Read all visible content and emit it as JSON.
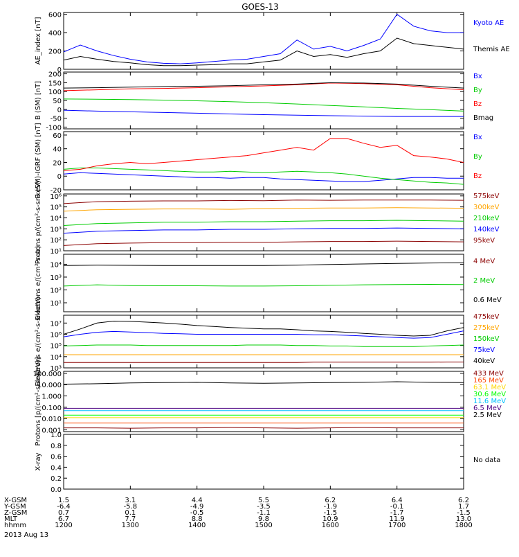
{
  "title": "GOES-13",
  "date": "2013 Aug 13",
  "x_axis": {
    "row_labels": [
      "X-GSM",
      "Y-GSM",
      "Z-GSM",
      "MLT",
      "hhmm"
    ],
    "columns": [
      [
        "1.5",
        "-6.4",
        "0.7",
        "6.7",
        "1200"
      ],
      [
        "3.1",
        "-5.8",
        "0.1",
        "7.7",
        "1300"
      ],
      [
        "4.4",
        "-4.9",
        "-0.5",
        "8.8",
        "1400"
      ],
      [
        "5.5",
        "-3.5",
        "-1.1",
        "9.8",
        "1500"
      ],
      [
        "6.2",
        "-1.9",
        "-1.5",
        "10.9",
        "1600"
      ],
      [
        "6.4",
        "-0.1",
        "-1.7",
        "11.9",
        "1700"
      ],
      [
        "6.2",
        "1.7",
        "-1.5",
        "13.0",
        "1800"
      ]
    ]
  },
  "chart_data": [
    {
      "type": "line",
      "ylabel": "AE_index [nT]",
      "yscale": "linear",
      "ylim": [
        0,
        620
      ],
      "ticks": [
        "0",
        "200",
        "400",
        "600"
      ],
      "x": [
        1200,
        1215,
        1230,
        1245,
        1300,
        1315,
        1330,
        1345,
        1400,
        1415,
        1430,
        1445,
        1500,
        1515,
        1530,
        1545,
        1600,
        1615,
        1630,
        1645,
        1700,
        1715,
        1730,
        1745,
        1800
      ],
      "series": [
        {
          "name": "Kyoto AE",
          "color": "#0000ff",
          "values": [
            190,
            265,
            200,
            150,
            110,
            80,
            65,
            60,
            70,
            85,
            100,
            110,
            140,
            170,
            320,
            220,
            250,
            200,
            260,
            330,
            600,
            470,
            420,
            400,
            400
          ]
        },
        {
          "name": "Themis AE",
          "color": "#000000",
          "values": [
            100,
            140,
            110,
            85,
            70,
            50,
            40,
            40,
            45,
            50,
            60,
            60,
            80,
            100,
            200,
            140,
            160,
            130,
            170,
            200,
            340,
            280,
            260,
            240,
            220
          ]
        }
      ]
    },
    {
      "type": "line",
      "ylabel": "B (SM) [nT]",
      "yscale": "linear",
      "ylim": [
        -110,
        210
      ],
      "ticks": [
        "200",
        "150",
        "100",
        "50",
        "0",
        "-50",
        "-100"
      ],
      "x": [
        1200,
        1230,
        1300,
        1330,
        1400,
        1430,
        1500,
        1530,
        1600,
        1630,
        1700,
        1730,
        1800
      ],
      "series": [
        {
          "name": "Bx",
          "color": "#0000ff",
          "values": [
            -5,
            -10,
            -14,
            -18,
            -22,
            -26,
            -30,
            -33,
            -36,
            -38,
            -40,
            -40,
            -40
          ]
        },
        {
          "name": "By",
          "color": "#00cc00",
          "values": [
            58,
            57,
            55,
            52,
            48,
            43,
            37,
            30,
            22,
            14,
            5,
            -2,
            -10
          ]
        },
        {
          "name": "Bz",
          "color": "#ff0000",
          "values": [
            105,
            110,
            115,
            118,
            122,
            127,
            132,
            138,
            148,
            145,
            138,
            122,
            110
          ]
        },
        {
          "name": "Bmag",
          "color": "#000000",
          "values": [
            120,
            122,
            125,
            128,
            130,
            133,
            138,
            142,
            150,
            148,
            142,
            130,
            120
          ]
        }
      ]
    },
    {
      "type": "line",
      "ylabel": "B (SM)-IGRF (SM) [nT]",
      "yscale": "linear",
      "ylim": [
        -20,
        65
      ],
      "ticks": [
        "60",
        "40",
        "20",
        "0",
        "-20"
      ],
      "x": [
        1200,
        1215,
        1230,
        1245,
        1300,
        1315,
        1330,
        1345,
        1400,
        1415,
        1430,
        1445,
        1500,
        1515,
        1530,
        1545,
        1600,
        1615,
        1630,
        1645,
        1700,
        1715,
        1730,
        1745,
        1800
      ],
      "series": [
        {
          "name": "Bx",
          "color": "#0000ff",
          "values": [
            3,
            5,
            4,
            3,
            2,
            1,
            0,
            -1,
            -2,
            -2,
            -3,
            -2,
            -2,
            -4,
            -5,
            -6,
            -7,
            -8,
            -8,
            -6,
            -4,
            -2,
            -2,
            -3,
            -3
          ]
        },
        {
          "name": "By",
          "color": "#00cc00",
          "values": [
            10,
            12,
            12,
            11,
            10,
            9,
            8,
            7,
            6,
            6,
            7,
            6,
            5,
            6,
            7,
            6,
            5,
            3,
            0,
            -3,
            -5,
            -7,
            -9,
            -10,
            -12
          ]
        },
        {
          "name": "Bz",
          "color": "#ff0000",
          "values": [
            8,
            10,
            15,
            18,
            20,
            18,
            20,
            22,
            24,
            26,
            28,
            30,
            34,
            38,
            42,
            38,
            55,
            55,
            48,
            42,
            45,
            30,
            28,
            25,
            20
          ]
        }
      ]
    },
    {
      "type": "line",
      "ylabel": "Protons p/(cm²-s-sr-keV)",
      "yscale": "log",
      "ylim": [
        10,
        1500000
      ],
      "ticks": [
        "10¹",
        "10²",
        "10³",
        "10⁴",
        "10⁵",
        "10⁶"
      ],
      "tick_values": [
        10,
        100,
        1000,
        10000,
        100000,
        1000000
      ],
      "x": [
        1200,
        1230,
        1300,
        1330,
        1400,
        1430,
        1500,
        1530,
        1600,
        1630,
        1700,
        1730,
        1800
      ],
      "series": [
        {
          "name": "575keV",
          "color": "#8b0000",
          "values": [
            200000,
            300000,
            330000,
            350000,
            350000,
            380000,
            360000,
            420000,
            400000,
            420000,
            420000,
            420000,
            400000
          ]
        },
        {
          "name": "300keV",
          "color": "#ffa500",
          "values": [
            40000,
            55000,
            60000,
            65000,
            65000,
            60000,
            70000,
            75000,
            80000,
            80000,
            85000,
            80000,
            75000
          ]
        },
        {
          "name": "210keV",
          "color": "#00cc00",
          "values": [
            2000,
            3000,
            3500,
            4000,
            4000,
            4500,
            4500,
            5000,
            5500,
            5500,
            6000,
            5500,
            5000
          ]
        },
        {
          "name": "140keV",
          "color": "#0000ff",
          "values": [
            400,
            600,
            700,
            800,
            800,
            900,
            900,
            1000,
            1100,
            1100,
            1200,
            1100,
            1000
          ]
        },
        {
          "name": "95keV",
          "color": "#8b0000",
          "values": [
            30,
            45,
            50,
            55,
            55,
            60,
            60,
            65,
            70,
            70,
            75,
            70,
            65
          ]
        }
      ]
    },
    {
      "type": "line",
      "ylabel": "Electrons e/(cm²-s-sr)",
      "yscale": "log",
      "ylim": [
        2,
        60000
      ],
      "ticks": [
        "10¹",
        "10²",
        "10³",
        "10⁴"
      ],
      "tick_values": [
        10,
        100,
        1000,
        10000
      ],
      "x": [
        1200,
        1230,
        1300,
        1330,
        1400,
        1430,
        1500,
        1530,
        1600,
        1630,
        1700,
        1730,
        1800
      ],
      "series": [
        {
          "name": "4 MeV",
          "color": "#8b0000",
          "values": [
            null,
            null,
            null,
            null,
            null,
            null,
            null,
            null,
            null,
            null,
            null,
            null,
            null
          ]
        },
        {
          "name": "2 MeV",
          "color": "#00cc00",
          "values": [
            200,
            250,
            220,
            210,
            210,
            200,
            200,
            210,
            230,
            250,
            260,
            270,
            260
          ]
        },
        {
          "name": "0.6 MeV",
          "color": "#000000",
          "values": [
            8000,
            8500,
            8200,
            8000,
            8000,
            8000,
            8000,
            8500,
            9500,
            10500,
            11500,
            12500,
            13000
          ]
        }
      ]
    },
    {
      "type": "line",
      "ylabel": "Electrons e/(cm²-s-sr-keV)",
      "yscale": "log",
      "ylim": [
        1000,
        50000000
      ],
      "ticks": [
        "10³",
        "10⁴",
        "10⁵",
        "10⁶",
        "10⁷"
      ],
      "tick_values": [
        1000,
        10000,
        100000,
        1000000,
        10000000
      ],
      "x": [
        1200,
        1215,
        1230,
        1245,
        1300,
        1315,
        1330,
        1345,
        1400,
        1415,
        1430,
        1445,
        1500,
        1515,
        1530,
        1545,
        1600,
        1615,
        1630,
        1645,
        1700,
        1715,
        1730,
        1745,
        1800
      ],
      "series": [
        {
          "name": "475keV",
          "color": "#8b0000",
          "values": [
            3000,
            3000,
            3000,
            3000,
            3000,
            3000,
            3000,
            3000,
            3000,
            3000,
            3000,
            3000,
            3000,
            3000,
            3000,
            3200,
            3200,
            3200,
            3200,
            3200,
            3200,
            3200,
            3200,
            3300,
            3300
          ]
        },
        {
          "name": "275keV",
          "color": "#ffa500",
          "values": [
            15000,
            15000,
            15000,
            15000,
            15000,
            15000,
            15000,
            15000,
            15000,
            15000,
            15000,
            15000,
            15000,
            15000,
            15000,
            15000,
            15000,
            15000,
            15000,
            15000,
            15000,
            15000,
            15000,
            15000,
            15000
          ]
        },
        {
          "name": "150keV",
          "color": "#00cc00",
          "values": [
            90000,
            100000,
            110000,
            110000,
            110000,
            100000,
            100000,
            100000,
            100000,
            100000,
            100000,
            110000,
            110000,
            110000,
            100000,
            100000,
            90000,
            90000,
            80000,
            80000,
            80000,
            80000,
            90000,
            100000,
            110000
          ]
        },
        {
          "name": "75keV",
          "color": "#0000ff",
          "values": [
            600000,
            1000000,
            1500000,
            1800000,
            1600000,
            1400000,
            1200000,
            1100000,
            1000000,
            1000000,
            1000000,
            1000000,
            1000000,
            1000000,
            1000000,
            900000,
            900000,
            800000,
            700000,
            600000,
            500000,
            450000,
            500000,
            1000000,
            2000000
          ]
        },
        {
          "name": "40keV",
          "color": "#000000",
          "values": [
            1000000,
            3000000,
            10000000,
            15000000,
            14000000,
            12000000,
            10000000,
            8000000,
            6000000,
            5000000,
            4000000,
            3500000,
            3000000,
            3000000,
            2500000,
            2000000,
            1800000,
            1500000,
            1200000,
            1000000,
            800000,
            700000,
            800000,
            2000000,
            4000000
          ]
        }
      ]
    },
    {
      "type": "line",
      "ylabel": "Protons [p/(cm²-s-sr-keV)]",
      "yscale": "log",
      "ylim": [
        0.0007,
        150
      ],
      "ticks": [
        "0.001",
        "0.010",
        "0.100",
        "1.000",
        "10.000",
        "100.000"
      ],
      "tick_values": [
        0.001,
        0.01,
        0.1,
        1,
        10,
        100
      ],
      "x": [
        1200,
        1230,
        1300,
        1330,
        1400,
        1430,
        1500,
        1530,
        1600,
        1630,
        1700,
        1730,
        1800
      ],
      "series": [
        {
          "name": "433 MeV",
          "color": "#8b0000",
          "values": [
            0.0015,
            0.0015,
            0.0014,
            0.0015,
            0.0015,
            0.0016,
            0.0015,
            0.0014,
            0.0015,
            0.0016,
            0.0015,
            0.0015,
            0.0015
          ]
        },
        {
          "name": "165 MeV",
          "color": "#ff4500",
          "values": [
            0.004,
            0.004,
            0.004,
            0.004,
            0.004,
            0.004,
            0.004,
            0.004,
            0.004,
            0.004,
            0.004,
            0.004,
            0.004
          ]
        },
        {
          "name": "63.1 MeV",
          "color": "#ffd700",
          "values": [
            0.012,
            0.012,
            0.012,
            0.012,
            0.012,
            0.012,
            0.012,
            0.012,
            0.012,
            0.012,
            0.012,
            0.012,
            0.012
          ]
        },
        {
          "name": "30.6 MeV",
          "color": "#00ff00",
          "values": [
            0.02,
            0.02,
            0.02,
            0.02,
            0.02,
            0.02,
            0.02,
            0.02,
            0.02,
            0.02,
            0.02,
            0.02,
            0.02
          ]
        },
        {
          "name": "11.6 MeV",
          "color": "#00bfff",
          "values": [
            0.05,
            0.05,
            0.05,
            0.05,
            0.05,
            0.05,
            0.05,
            0.05,
            0.05,
            0.05,
            0.05,
            0.05,
            0.05
          ]
        },
        {
          "name": "6.5 MeV",
          "color": "#4b0082",
          "values": [
            0.08,
            0.08,
            0.08,
            0.08,
            0.08,
            0.08,
            0.08,
            0.08,
            0.08,
            0.08,
            0.08,
            0.08,
            0.08
          ]
        },
        {
          "name": "2.5 MeV",
          "color": "#000000",
          "values": [
            11,
            12,
            14,
            15,
            16,
            14,
            13,
            14,
            15,
            16,
            18,
            16,
            15
          ]
        }
      ]
    },
    {
      "type": "line",
      "ylabel": "X-ray",
      "yscale": "linear",
      "ylim": [
        0,
        1.0
      ],
      "ticks": [
        "0.0",
        "0.2",
        "0.4",
        "0.6",
        "0.8",
        "1.0"
      ],
      "x": [],
      "series": [],
      "note": "No data"
    }
  ]
}
